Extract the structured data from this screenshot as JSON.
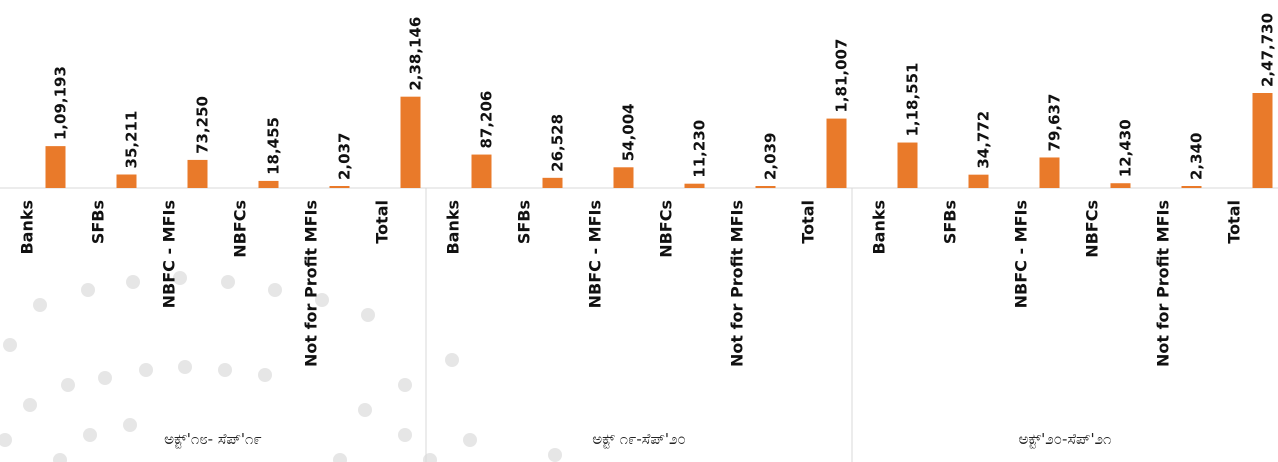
{
  "chart_data": {
    "type": "bar",
    "title": "",
    "xlabel": "",
    "ylabel": "",
    "ylim": [
      0,
      250000
    ],
    "grid": false,
    "legend": "none",
    "colors": {
      "bar": "#E97A2A",
      "axis": "#D9D9D9",
      "dots": "#E6E6E6"
    },
    "groups": [
      {
        "label": "ಅಕ್ಟ್'೧೮- ಸೆಪ್'೧೯",
        "categories": [
          "Banks",
          "SFBs",
          "NBFC - MFIs",
          "NBFCs",
          "Not for Profit MFIs",
          "Total"
        ],
        "values": [
          109193,
          35211,
          73250,
          18455,
          2037,
          238146
        ],
        "value_labels": [
          "1,09,193",
          "35,211",
          "73,250",
          "18,455",
          "2,037",
          "2,38,146"
        ]
      },
      {
        "label": "ಅಕ್ಟ್ ೧೯-ಸೆಪ್'೨೦",
        "categories": [
          "Banks",
          "SFBs",
          "NBFC - MFIs",
          "NBFCs",
          "Not for Profit MFIs",
          "Total"
        ],
        "values": [
          87206,
          26528,
          54004,
          11230,
          2039,
          181007
        ],
        "value_labels": [
          "87,206",
          "26,528",
          "54,004",
          "11,230",
          "2,039",
          "1,81,007"
        ]
      },
      {
        "label": "ಅಕ್ಟ್'೨೦-ಸೆಪ್'೨೧",
        "categories": [
          "Banks",
          "SFBs",
          "NBFC - MFIs",
          "NBFCs",
          "Not for Profit MFIs",
          "Total"
        ],
        "values": [
          118551,
          34772,
          79637,
          12430,
          2340,
          247730
        ],
        "value_labels": [
          "1,18,551",
          "34,772",
          "79,637",
          "12,430",
          "2,340",
          "2,47,730"
        ]
      }
    ]
  }
}
